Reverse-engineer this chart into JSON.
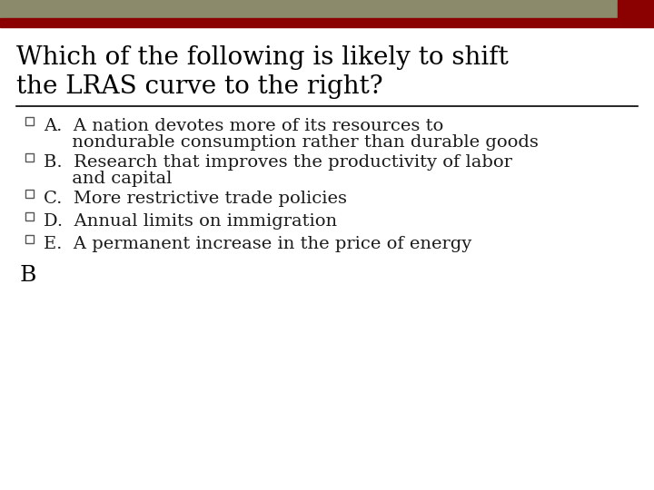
{
  "title_line1": "Which of the following is likely to shift",
  "title_line2": "the LRAS curve to the right?",
  "title_color": "#000000",
  "title_fontsize": 20,
  "background_color": "#ffffff",
  "header_bar1_color": "#8B8B6B",
  "header_bar2_color": "#8B0000",
  "separator_color": "#000000",
  "text_color": "#1a1a1a",
  "answer_color": "#000000",
  "bullet_edge_color": "#555555",
  "items_line1": [
    "A.  A nation devotes more of its resources to",
    "B.  Research that improves the productivity of labor",
    "C.  More restrictive trade policies",
    "D.  Annual limits on immigration",
    "E.  A permanent increase in the price of energy"
  ],
  "items_line2": [
    "     nondurable consumption rather than durable goods",
    "     and capital",
    "",
    "",
    ""
  ],
  "answer": "B",
  "item_fontsize": 14,
  "answer_fontsize": 18
}
